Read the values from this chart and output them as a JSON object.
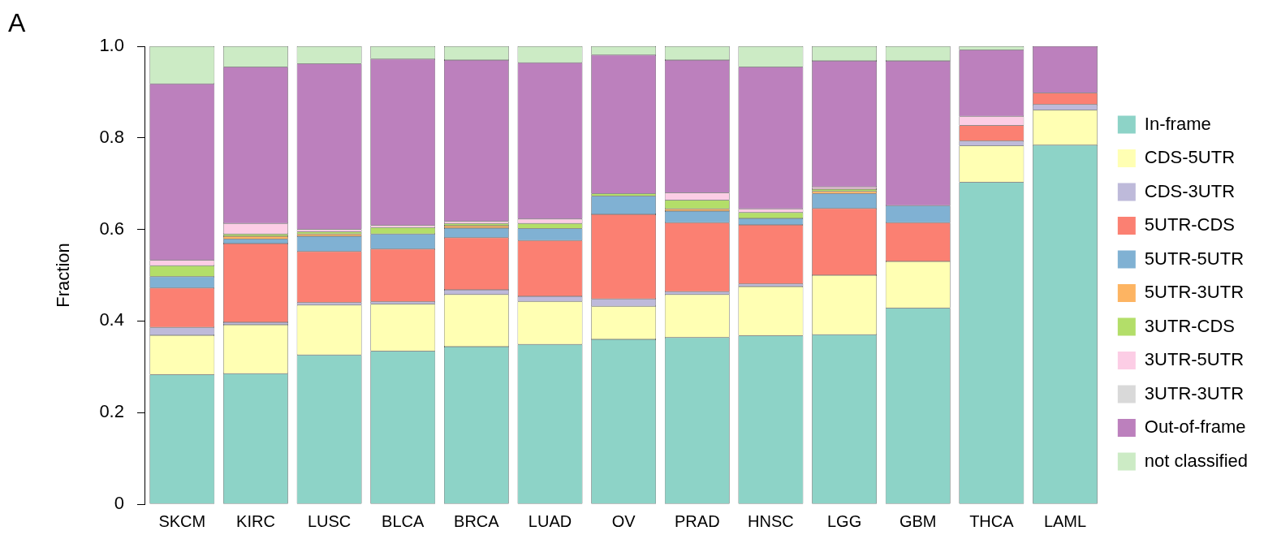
{
  "chart_data": {
    "type": "bar",
    "stacked": true,
    "ylabel": "Fraction",
    "annotations": [
      "A"
    ],
    "categories": [
      "SKCM",
      "KIRC",
      "LUSC",
      "BLCA",
      "BRCA",
      "LUAD",
      "OV",
      "PRAD",
      "HNSC",
      "LGG",
      "GBM",
      "THCA",
      "LAML"
    ],
    "ylim": [
      0,
      1
    ],
    "yticks": [
      0,
      0.2,
      0.4,
      0.6,
      0.8,
      {
        "value": 1,
        "label": "1.0"
      }
    ],
    "grid": false,
    "legend": "right",
    "series": [
      {
        "name": "In-frame",
        "color": "#8dd3c7",
        "values": [
          0.283,
          0.285,
          0.326,
          0.334,
          0.344,
          0.349,
          0.36,
          0.364,
          0.368,
          0.37,
          0.428,
          0.703,
          0.784
        ]
      },
      {
        "name": "CDS-5UTR",
        "color": "#ffffb3",
        "values": [
          0.086,
          0.107,
          0.109,
          0.103,
          0.114,
          0.094,
          0.072,
          0.094,
          0.107,
          0.13,
          0.102,
          0.08,
          0.077
        ]
      },
      {
        "name": "CDS-3UTR",
        "color": "#bebada",
        "values": [
          0.017,
          0.005,
          0.005,
          0.005,
          0.01,
          0.011,
          0.016,
          0.006,
          0.006,
          null,
          null,
          0.01,
          0.012
        ]
      },
      {
        "name": "5UTR-CDS",
        "color": "#fb8072",
        "values": [
          0.086,
          0.172,
          0.112,
          0.115,
          0.114,
          0.122,
          0.185,
          0.151,
          0.129,
          0.146,
          0.085,
          0.034,
          0.025
        ]
      },
      {
        "name": "5UTR-5UTR",
        "color": "#80b1d3",
        "values": [
          0.025,
          0.01,
          0.033,
          0.033,
          0.021,
          0.026,
          0.04,
          0.025,
          0.014,
          0.032,
          0.037,
          null,
          null
        ]
      },
      {
        "name": "5UTR-3UTR",
        "color": "#fdb462",
        "values": [
          null,
          0.006,
          0.005,
          null,
          0.005,
          null,
          null,
          0.005,
          null,
          0.005,
          null,
          null,
          null
        ]
      },
      {
        "name": "3UTR-CDS",
        "color": "#b3de69",
        "values": [
          0.024,
          0.005,
          0.005,
          0.014,
          0.005,
          0.011,
          0.005,
          0.019,
          0.013,
          0.005,
          null,
          null,
          null
        ]
      },
      {
        "name": "3UTR-5UTR",
        "color": "#fccde5",
        "values": [
          0.012,
          0.023,
          0.005,
          0.005,
          0.005,
          0.01,
          null,
          0.016,
          0.008,
          0.005,
          null,
          0.02,
          null
        ]
      },
      {
        "name": "3UTR-3UTR",
        "color": "#d9d9d9",
        "values": [
          null,
          null,
          null,
          null,
          null,
          null,
          null,
          null,
          null,
          null,
          null,
          null,
          null
        ]
      },
      {
        "name": "Out-of-frame",
        "color": "#bc80bd",
        "values": [
          0.385,
          0.342,
          0.362,
          0.363,
          0.352,
          0.341,
          0.303,
          0.29,
          0.31,
          0.275,
          0.316,
          0.145,
          0.102
        ]
      },
      {
        "name": "not classified",
        "color": "#ccebc5",
        "values": [
          0.082,
          0.045,
          0.038,
          0.028,
          0.03,
          0.036,
          0.019,
          0.03,
          0.045,
          0.032,
          0.032,
          0.008,
          null
        ]
      }
    ]
  }
}
